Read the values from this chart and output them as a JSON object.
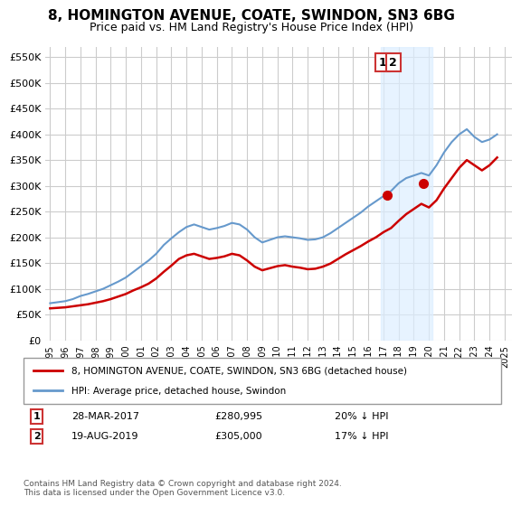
{
  "title": "8, HOMINGTON AVENUE, COATE, SWINDON, SN3 6BG",
  "subtitle": "Price paid vs. HM Land Registry's House Price Index (HPI)",
  "ylabel_ticks": [
    "£0",
    "£50K",
    "£100K",
    "£150K",
    "£200K",
    "£250K",
    "£300K",
    "£350K",
    "£400K",
    "£450K",
    "£500K",
    "£550K"
  ],
  "ylim": [
    0,
    570000
  ],
  "xlim_start": 1995.0,
  "xlim_end": 2025.5,
  "legend_label_red": "8, HOMINGTON AVENUE, COATE, SWINDON, SN3 6BG (detached house)",
  "legend_label_blue": "HPI: Average price, detached house, Swindon",
  "point1_label": "1",
  "point1_date": "28-MAR-2017",
  "point1_price": "£280,995",
  "point1_pct": "20% ↓ HPI",
  "point2_label": "2",
  "point2_date": "19-AUG-2019",
  "point2_price": "£305,000",
  "point2_pct": "17% ↓ HPI",
  "footer": "Contains HM Land Registry data © Crown copyright and database right 2024.\nThis data is licensed under the Open Government Licence v3.0.",
  "red_color": "#cc0000",
  "blue_color": "#6699cc",
  "shade_color": "#ddeeff",
  "point_color": "#cc0000",
  "grid_color": "#cccccc",
  "bg_color": "#ffffff",
  "hpi_years": [
    1995.0,
    1995.5,
    1996.0,
    1996.5,
    1997.0,
    1997.5,
    1998.0,
    1998.5,
    1999.0,
    1999.5,
    2000.0,
    2000.5,
    2001.0,
    2001.5,
    2002.0,
    2002.5,
    2003.0,
    2003.5,
    2004.0,
    2004.5,
    2005.0,
    2005.5,
    2006.0,
    2006.5,
    2007.0,
    2007.5,
    2008.0,
    2008.5,
    2009.0,
    2009.5,
    2010.0,
    2010.5,
    2011.0,
    2011.5,
    2012.0,
    2012.5,
    2013.0,
    2013.5,
    2014.0,
    2014.5,
    2015.0,
    2015.5,
    2016.0,
    2016.5,
    2017.0,
    2017.5,
    2018.0,
    2018.5,
    2019.0,
    2019.5,
    2020.0,
    2020.5,
    2021.0,
    2021.5,
    2022.0,
    2022.5,
    2023.0,
    2023.5,
    2024.0,
    2024.5
  ],
  "hpi_values": [
    72000,
    74000,
    76000,
    80000,
    86000,
    90000,
    95000,
    100000,
    107000,
    114000,
    122000,
    133000,
    144000,
    155000,
    168000,
    185000,
    198000,
    210000,
    220000,
    225000,
    220000,
    215000,
    218000,
    222000,
    228000,
    225000,
    215000,
    200000,
    190000,
    195000,
    200000,
    202000,
    200000,
    198000,
    195000,
    196000,
    200000,
    208000,
    218000,
    228000,
    238000,
    248000,
    260000,
    270000,
    280000,
    290000,
    305000,
    315000,
    320000,
    325000,
    320000,
    340000,
    365000,
    385000,
    400000,
    410000,
    395000,
    385000,
    390000,
    400000
  ],
  "red_years": [
    1995.0,
    1995.5,
    1996.0,
    1996.5,
    1997.0,
    1997.5,
    1998.0,
    1998.5,
    1999.0,
    1999.5,
    2000.0,
    2000.5,
    2001.0,
    2001.5,
    2002.0,
    2002.5,
    2003.0,
    2003.5,
    2004.0,
    2004.5,
    2005.0,
    2005.5,
    2006.0,
    2006.5,
    2007.0,
    2007.5,
    2008.0,
    2008.5,
    2009.0,
    2009.5,
    2010.0,
    2010.5,
    2011.0,
    2011.5,
    2012.0,
    2012.5,
    2013.0,
    2013.5,
    2014.0,
    2014.5,
    2015.0,
    2015.5,
    2016.0,
    2016.5,
    2017.0,
    2017.5,
    2018.0,
    2018.5,
    2019.0,
    2019.5,
    2020.0,
    2020.5,
    2021.0,
    2021.5,
    2022.0,
    2022.5,
    2023.0,
    2023.5,
    2024.0,
    2024.5
  ],
  "red_values": [
    62000,
    63000,
    64000,
    66000,
    68000,
    70000,
    73000,
    76000,
    80000,
    85000,
    90000,
    97000,
    103000,
    110000,
    120000,
    133000,
    145000,
    158000,
    165000,
    168000,
    163000,
    158000,
    160000,
    163000,
    168000,
    165000,
    155000,
    143000,
    136000,
    140000,
    144000,
    146000,
    143000,
    141000,
    138000,
    139000,
    143000,
    149000,
    158000,
    167000,
    175000,
    183000,
    192000,
    200000,
    210000,
    218000,
    232000,
    245000,
    255000,
    265000,
    258000,
    272000,
    295000,
    315000,
    335000,
    350000,
    340000,
    330000,
    340000,
    355000
  ],
  "point1_x": 2017.23,
  "point1_y": 280995,
  "point2_x": 2019.63,
  "point2_y": 305000,
  "shade_x1": 2016.8,
  "shade_x2": 2020.2
}
